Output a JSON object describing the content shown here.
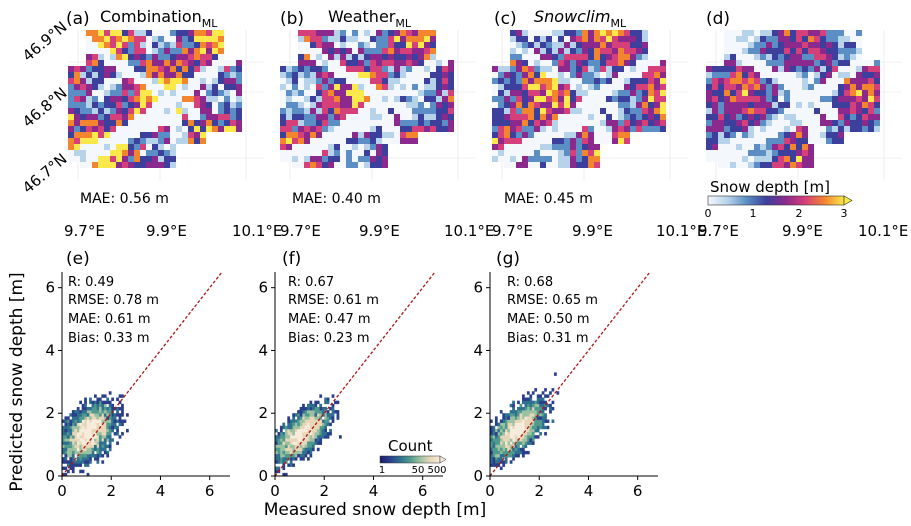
{
  "maps": {
    "panels": [
      {
        "letter": "(a)",
        "title": "Combination",
        "title_sub": "ML",
        "title_italic": false,
        "mae": "MAE: 0.56 m",
        "intensity": 0.85,
        "seed": 11
      },
      {
        "letter": "(b)",
        "title": "Weather",
        "title_sub": "ML",
        "title_italic": false,
        "mae": "MAE: 0.40 m",
        "intensity": 0.55,
        "seed": 23
      },
      {
        "letter": "(c)",
        "title": "Snowclim",
        "title_sub": "ML",
        "title_italic": true,
        "mae": "MAE: 0.45 m",
        "intensity": 0.6,
        "seed": 37
      },
      {
        "letter": "(d)",
        "title": "",
        "title_sub": "",
        "title_italic": false,
        "mae": "",
        "intensity": 0.35,
        "seed": 53
      }
    ],
    "lat_ticks": [
      "46.9°N",
      "46.8°N",
      "46.7°N"
    ],
    "lon_ticks": [
      "9.7°E",
      "9.9°E",
      "10.1°E"
    ],
    "colorbar": {
      "label": "Snow depth [m]",
      "ticks": [
        "0",
        "1",
        "2",
        "3"
      ],
      "colors": [
        "#f4f8fc",
        "#b7d3ea",
        "#5a8ec4",
        "#3d3f9c",
        "#8b2a8c",
        "#d6407a",
        "#f2852e",
        "#fbe84a"
      ]
    }
  },
  "chart_data": [
    {
      "type": "scatter",
      "letter": "(e)",
      "stats": [
        "R: 0.49",
        "RMSE: 0.78 m",
        "MAE: 0.61 m",
        "Bias: 0.33 m"
      ],
      "xlim": [
        0,
        6.5
      ],
      "ylim": [
        0,
        6.5
      ],
      "xticks": [
        0,
        2,
        4,
        6
      ],
      "yticks": [
        0,
        2,
        4,
        6
      ],
      "spread": {
        "sx": 1.3,
        "sy": 0.9,
        "slope": 0.35,
        "intercept": 1.0
      },
      "seed": 101
    },
    {
      "type": "scatter",
      "letter": "(f)",
      "stats": [
        "R: 0.67",
        "RMSE: 0.61 m",
        "MAE: 0.47 m",
        "Bias: 0.23 m"
      ],
      "xlim": [
        0,
        6.5
      ],
      "ylim": [
        0,
        6.5
      ],
      "xticks": [
        0,
        2,
        4,
        6
      ],
      "yticks": [
        0,
        2,
        4,
        6
      ],
      "spread": {
        "sx": 1.3,
        "sy": 0.7,
        "slope": 0.5,
        "intercept": 0.8
      },
      "seed": 202
    },
    {
      "type": "scatter",
      "letter": "(g)",
      "stats": [
        "R: 0.68",
        "RMSE: 0.65 m",
        "MAE: 0.50 m",
        "Bias: 0.31 m"
      ],
      "xlim": [
        0,
        6.5
      ],
      "ylim": [
        0,
        6.5
      ],
      "xticks": [
        0,
        2,
        4,
        6
      ],
      "yticks": [
        0,
        2,
        4,
        6
      ],
      "spread": {
        "sx": 1.3,
        "sy": 0.75,
        "slope": 0.5,
        "intercept": 0.9
      },
      "seed": 303
    }
  ],
  "scatter_common": {
    "ylabel": "Predicted snow depth [m]",
    "xlabel": "Measured snow depth [m]",
    "count_label": "Count",
    "count_ticks": [
      "1",
      "50",
      "500"
    ],
    "one_to_one_color": "#b01515",
    "density_colors": [
      "#1b1b6e",
      "#2a3f8a",
      "#2f6f8f",
      "#4f9a8c",
      "#9cc1a0",
      "#e7d6b8",
      "#f7ecdc"
    ]
  }
}
